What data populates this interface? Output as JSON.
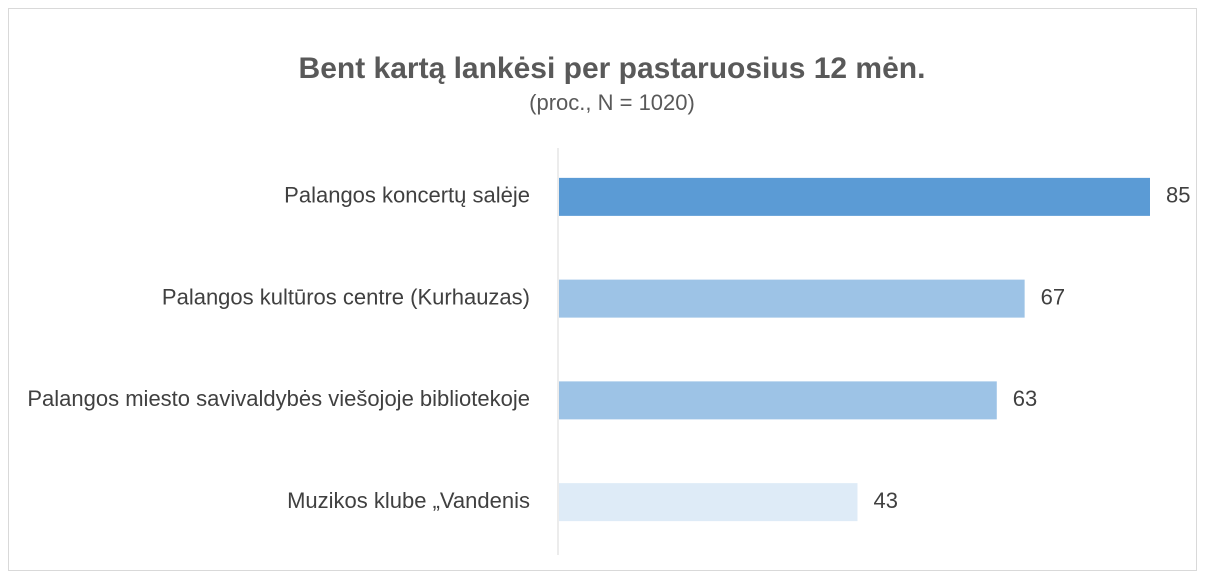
{
  "chart_data": {
    "type": "barh",
    "title": "Bent kartą lankėsi per pastaruosius 12 mėn.",
    "subtitle": "(proc., N = 1020)",
    "categories": [
      "Palangos koncertų salėje",
      "Palangos kultūros centre (Kurhauzas)",
      "Palangos miesto savivaldybės viešojoje bibliotekoje",
      "Muzikos klube „Vandenis"
    ],
    "values": [
      85,
      67,
      63,
      43
    ],
    "colors": [
      "#5b9bd5",
      "#9dc3e6",
      "#9dc3e6",
      "#deebf7"
    ]
  }
}
